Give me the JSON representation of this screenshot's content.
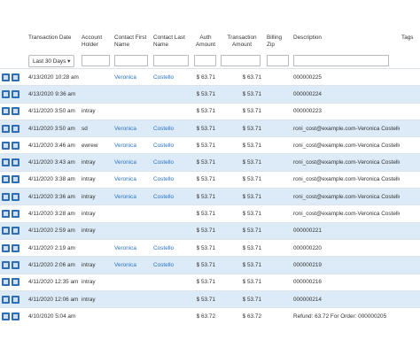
{
  "table": {
    "headers": [
      "Transaction Date",
      "Account Holder",
      "Contact First Name",
      "Contact Last Name",
      "Auth Amount",
      "Transaction Amount",
      "Billing Zip",
      "Description",
      "Tags"
    ],
    "date_filter": "Last 30 Days",
    "rows": [
      [
        "4/13/2020 10:28 am",
        null,
        "Veronica",
        "Costello",
        "$ 63.71",
        "$ 63.71",
        null,
        "000000225"
      ],
      [
        "4/13/2020 9:36 am",
        null,
        null,
        null,
        "$ 53.71",
        "$ 53.71",
        null,
        "000000224"
      ],
      [
        "4/11/2020 3:50 am",
        "intray",
        null,
        null,
        "$ 53.71",
        "$ 53.71",
        null,
        "000000223"
      ],
      [
        "4/11/2020 3:50 am",
        "sd",
        "Veronica",
        "Costello",
        "$ 53.71",
        "$ 53.71",
        null,
        "roni_cost@example.com-Veronica Costello"
      ],
      [
        "4/11/2020 3:46 am",
        "ewrew",
        "Veronica",
        "Costello",
        "$ 53.71",
        "$ 53.71",
        null,
        "roni_cost@example.com-Veronica Costello"
      ],
      [
        "4/11/2020 3:43 am",
        "intray",
        "Veronica",
        "Costello",
        "$ 53.71",
        "$ 53.71",
        null,
        "roni_cost@example.com-Veronica Costello"
      ],
      [
        "4/11/2020 3:38 am",
        "intray",
        "Veronica",
        "Costello",
        "$ 53.71",
        "$ 53.71",
        null,
        "roni_cost@example.com-Veronica Costello"
      ],
      [
        "4/11/2020 3:36 am",
        "intray",
        "Veronica",
        "Costello",
        "$ 53.71",
        "$ 53.71",
        null,
        "roni_cost@example.com-Veronica Costello"
      ],
      [
        "4/11/2020 3:28 am",
        "intray",
        null,
        null,
        "$ 53.71",
        "$ 53.71",
        null,
        "roni_cost@example.com-Veronica Costello"
      ],
      [
        "4/11/2020 2:59 am",
        "intray",
        null,
        null,
        "$ 53.71",
        "$ 53.71",
        null,
        "000000221"
      ],
      [
        "4/11/2020 2:19 am",
        null,
        "Veronica",
        "Costello",
        "$ 53.71",
        "$ 53.71",
        null,
        "000000220"
      ],
      [
        "4/11/2020 2:06 am",
        "intray",
        "Veronica",
        "Costello",
        "$ 53.71",
        "$ 53.71",
        null,
        "000000219"
      ],
      [
        "4/11/2020 12:35 am",
        "intray",
        null,
        null,
        "$ 53.71",
        "$ 53.71",
        null,
        "000000216"
      ],
      [
        "4/11/2020 12:06 am",
        "intray",
        null,
        null,
        "$ 53.71",
        "$ 53.71",
        null,
        "000000214"
      ],
      [
        "4/10/2020 5:04 am",
        null,
        null,
        null,
        "$ 63.72",
        "$ 63.72",
        null,
        "Refund: 63.72 For Order: 000000205"
      ]
    ]
  }
}
